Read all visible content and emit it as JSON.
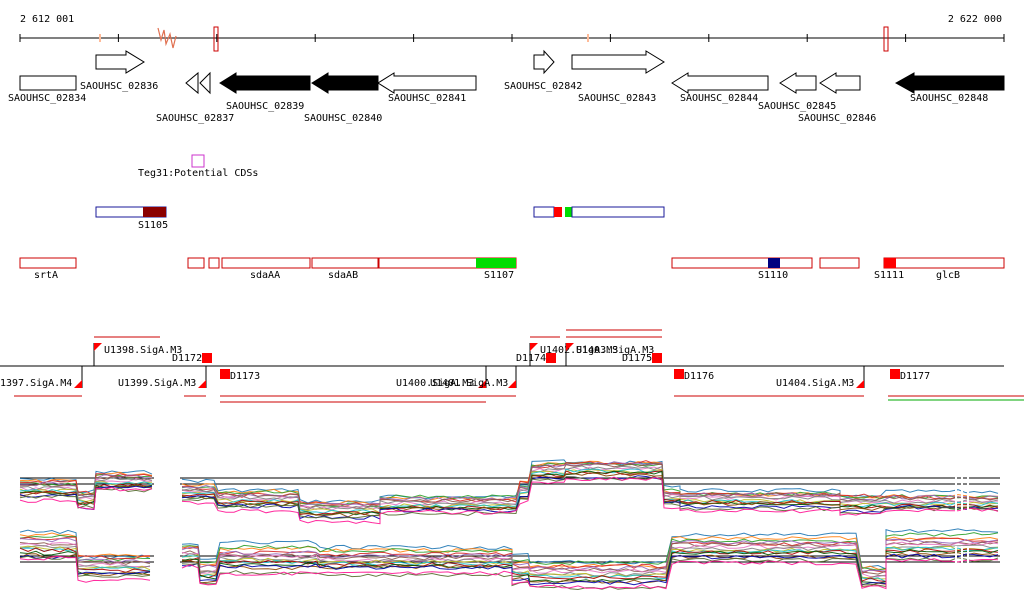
{
  "ruler": {
    "start_label": "2 612 001",
    "end_label": "2 622 000"
  },
  "genes": [
    {
      "id": "g1",
      "label": "SAOUHSC_02834",
      "strand": "none",
      "fill": "white"
    },
    {
      "id": "g2",
      "label": "SAOUHSC_02836",
      "strand": "+",
      "fill": "white"
    },
    {
      "id": "g3",
      "label": "SAOUHSC_02837",
      "strand": "-",
      "fill": "white"
    },
    {
      "id": "g4",
      "label": "SAOUHSC_02839",
      "strand": "-",
      "fill": "black"
    },
    {
      "id": "g5",
      "label": "SAOUHSC_02840",
      "strand": "-",
      "fill": "black"
    },
    {
      "id": "g6",
      "label": "SAOUHSC_02841",
      "strand": "-",
      "fill": "white"
    },
    {
      "id": "g7",
      "label": "SAOUHSC_02842",
      "strand": "+",
      "fill": "white"
    },
    {
      "id": "g8",
      "label": "SAOUHSC_02843",
      "strand": "+",
      "fill": "white"
    },
    {
      "id": "g9",
      "label": "SAOUHSC_02844",
      "strand": "-",
      "fill": "white"
    },
    {
      "id": "g10",
      "label": "SAOUHSC_02845",
      "strand": "-",
      "fill": "white"
    },
    {
      "id": "g11",
      "label": "SAOUHSC_02846",
      "strand": "-",
      "fill": "white"
    },
    {
      "id": "g12",
      "label": "SAOUHSC_02848",
      "strand": "-",
      "fill": "black"
    }
  ],
  "potential_cds": {
    "label": "Teg31:Potential CDSs"
  },
  "s_segments": [
    {
      "label": "S1105"
    },
    {
      "label": "S1107"
    },
    {
      "label": "S1110"
    },
    {
      "label": "S1111"
    }
  ],
  "operon_labels": [
    "srtA",
    "sdaAA",
    "sdaAB",
    "glcB"
  ],
  "promoters": [
    {
      "label": "1397.SigA.M4"
    },
    {
      "label": "U1398.SigA.M3"
    },
    {
      "label": "U1399.SigA.M3"
    },
    {
      "label": "U1400.SigA.M3"
    },
    {
      "label": "U1401.SigA.M3"
    },
    {
      "label": "U1402.SigA.M3"
    },
    {
      "label": "U1403.SigA.M3"
    },
    {
      "label": "U1404.SigA.M3"
    }
  ],
  "terminators": [
    {
      "label": "D1172"
    },
    {
      "label": "D1173"
    },
    {
      "label": "D1174"
    },
    {
      "label": "D1175"
    },
    {
      "label": "D1176"
    },
    {
      "label": "D1177"
    }
  ],
  "colors": {
    "outline_red": "#cc0000",
    "outline_blue": "#1a1a99",
    "dark_red": "#8b0000",
    "green": "#00dd00",
    "navy": "#000080",
    "red": "#ff0000",
    "pink": "#cc33cc"
  },
  "expression_colors": [
    "#1f77b4",
    "#ff7f0e",
    "#2ca02c",
    "#d62728",
    "#9467bd",
    "#8c564b",
    "#e377c2",
    "#7f7f7f",
    "#bcbd22",
    "#17becf",
    "#aa0000",
    "#005500",
    "#884400",
    "#0000aa",
    "#556b2f",
    "#ff1493"
  ]
}
